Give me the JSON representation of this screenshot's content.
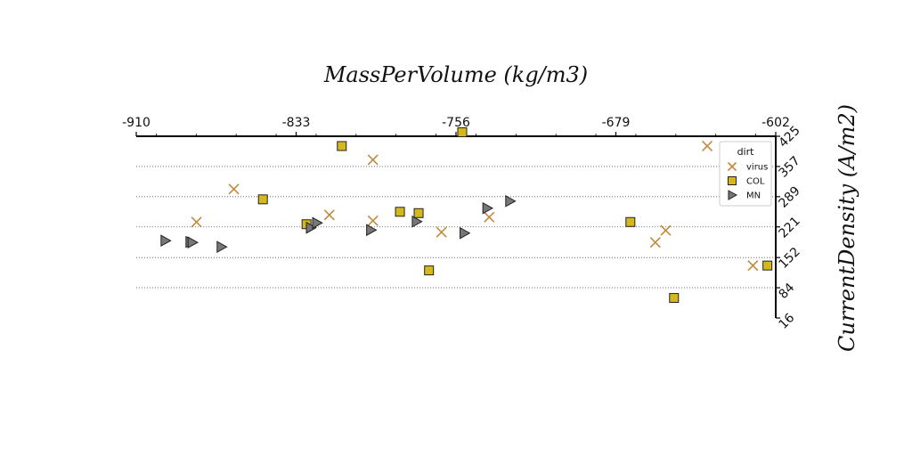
{
  "chart_data": {
    "type": "scatter",
    "xlabel": "MassPerVolume (kg/m3)",
    "ylabel": "CurrentDensity (A/m2)",
    "xlim": [
      -910,
      -602
    ],
    "ylim": [
      16,
      425
    ],
    "x_ticks": [
      "-910",
      "-833",
      "-756",
      "-679",
      "-602"
    ],
    "y_ticks": [
      "425",
      "357",
      "289",
      "221",
      "152",
      "84",
      "16"
    ],
    "grid": "horizontal dotted",
    "x_axis_position": "top",
    "y_axis_position": "right",
    "legend": {
      "title": "dirt",
      "placement": "upper right"
    },
    "series": [
      {
        "name": "virus",
        "marker": "x",
        "color": "#c08a3e",
        "points": [
          [
            -881,
            232
          ],
          [
            -863,
            306
          ],
          [
            -817,
            248
          ],
          [
            -796,
            372
          ],
          [
            -796,
            235
          ],
          [
            -763,
            209
          ],
          [
            -740,
            243
          ],
          [
            -660,
            186
          ],
          [
            -655,
            213
          ],
          [
            -635,
            403
          ],
          [
            -613,
            134
          ]
        ]
      },
      {
        "name": "COL",
        "marker": "square",
        "color": "#d4b81c",
        "points": [
          [
            -849,
            283
          ],
          [
            -828,
            227
          ],
          [
            -811,
            403
          ],
          [
            -783,
            255
          ],
          [
            -774,
            252
          ],
          [
            -769,
            123
          ],
          [
            -753,
            434
          ],
          [
            -672,
            232
          ],
          [
            -651,
            61
          ],
          [
            -606,
            134
          ]
        ]
      },
      {
        "name": "MN",
        "marker": "triangle-right",
        "color": "#777777",
        "points": [
          [
            -896,
            190
          ],
          [
            -884,
            187
          ],
          [
            -883,
            186
          ],
          [
            -869,
            176
          ],
          [
            -826,
            219
          ],
          [
            -823,
            230
          ],
          [
            -797,
            214
          ],
          [
            -775,
            233
          ],
          [
            -752,
            207
          ],
          [
            -741,
            263
          ],
          [
            -730,
            279
          ]
        ]
      }
    ]
  }
}
